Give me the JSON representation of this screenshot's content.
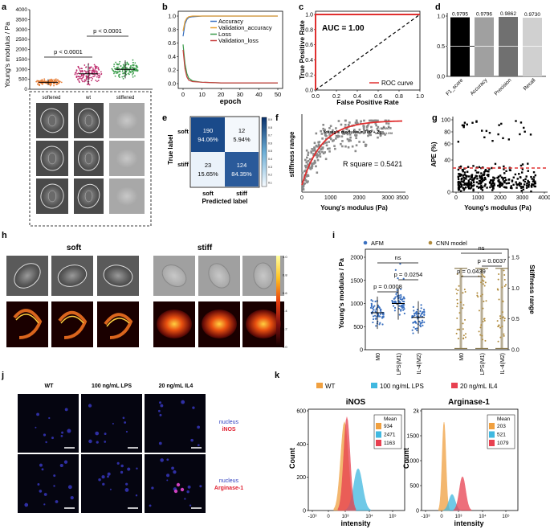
{
  "panels": {
    "a": {
      "letter": "a",
      "ylabel": "Young's modulus / Pa",
      "yticks": [
        "0",
        "500",
        "1000",
        "1500",
        "2000",
        "2500",
        "3000",
        "3500",
        "4000"
      ],
      "p1": "p < 0.0001",
      "p2": "p < 0.0001",
      "groups": [
        "softened",
        "wt",
        "stiffened"
      ]
    },
    "b": {
      "letter": "b",
      "xlabel": "epoch"
    },
    "c": {
      "letter": "c",
      "xlabel": "False Positive Rate",
      "ylabel": "True Positive Rate",
      "auc": "AUC = 1.00",
      "legend": "ROC curve"
    },
    "d": {
      "letter": "d"
    },
    "e": {
      "letter": "e",
      "xlabel": "Predicted label",
      "ylabel": "True label",
      "classes": [
        "soft",
        "stiff"
      ],
      "cells": [
        [
          "190",
          "94.06%"
        ],
        [
          "12",
          "5.94%"
        ],
        [
          "23",
          "15.65%"
        ],
        [
          "124",
          "84.35%"
        ]
      ],
      "scale_ticks": [
        "0.9",
        "0.8",
        "0.7",
        "0.6",
        "0.5",
        "0.4",
        "0.3",
        "0.2",
        "0.1"
      ]
    },
    "f": {
      "letter": "f",
      "xlabel": "Young's modulus (Pa)",
      "ylabel": "stiffness range",
      "eq": "Young's modulus = 789 + 2e",
      "exp_top": "−1.2686",
      "exp_bottom": "range − 1.098",
      "r2": "R square = 0.5421"
    },
    "g": {
      "letter": "g",
      "xlabel": "Young's modulus (Pa)",
      "ylabel": "APE (%)"
    },
    "h": {
      "letter": "h",
      "soft": "soft",
      "stiff": "stiff",
      "cbar": [
        "1.0",
        "0.8",
        "0.6",
        "0.4",
        "0.2",
        "0.0"
      ]
    },
    "i": {
      "letter": "i",
      "ylabel": "Young's modulus / Pa",
      "ylabel2": "Stiffness range",
      "legend_afm": "AFM",
      "legend_cnn": "CNN model",
      "yticks": [
        "0",
        "500",
        "1000",
        "1500",
        "2000"
      ],
      "y2ticks": [
        "0.0",
        "0.5",
        "1.0",
        "1.5"
      ],
      "groups": [
        "M0",
        "LPS(M1)",
        "IL-4(M2)",
        "M0",
        "LPS(M1)",
        "IL-4(M2)"
      ],
      "pvals": [
        "ns",
        "p = 0.0008",
        "p = 0.0254",
        "ns",
        "p = 0.0439",
        "p = 0.0037"
      ]
    },
    "j": {
      "letter": "j",
      "cols": [
        "WT",
        "100 ng/mL LPS",
        "20 ng/mL IL4"
      ],
      "row1_label": "nucleus",
      "row1_marker": "iNOS",
      "row2_label": "nucleus",
      "row2_marker": "Arginase-1"
    },
    "k": {
      "letter": "k",
      "legend": [
        "WT",
        "100 ng/mL LPS",
        "20 ng/mL IL4"
      ],
      "ylabel": "Count",
      "xlabel": "intensity",
      "inos_title": "iNOS",
      "arg_title": "Arginase-1",
      "mean_label": "Mean",
      "inos_means": [
        "934",
        "2471",
        "1163"
      ],
      "arg_means": [
        "203",
        "521",
        "1079"
      ],
      "inos_yticks": [
        "0",
        "200",
        "400",
        "600"
      ],
      "arg_yticks": [
        "0",
        "500",
        "1000",
        "1500",
        "2k"
      ],
      "xticks": [
        "-10³",
        "0",
        "10³",
        "10⁴",
        "10⁵"
      ]
    }
  },
  "colors": {
    "orange": "#f0a040",
    "cyan": "#40b8e0",
    "red": "#e84050",
    "gold": "#b08a3a",
    "blue": "#3a70c0"
  },
  "chart_data": [
    {
      "panel": "b",
      "type": "line",
      "title": "",
      "xlabel": "epoch",
      "ylabel": "",
      "xlim": [
        0,
        50
      ],
      "ylim": [
        0,
        1
      ],
      "x_ticks": [
        0,
        10,
        20,
        30,
        40,
        50
      ],
      "y_ticks": [
        0.0,
        0.2,
        0.4,
        0.6,
        0.8,
        1.0
      ],
      "series": [
        {
          "name": "Accuracy",
          "color": "#3a70c0",
          "x": [
            0,
            1,
            2,
            3,
            5,
            10,
            20,
            30,
            40,
            50
          ],
          "values": [
            0.7,
            0.88,
            0.95,
            0.98,
            0.99,
            1.0,
            1.0,
            1.0,
            1.0,
            1.0
          ]
        },
        {
          "name": "Validation_accuracy",
          "color": "#e8a030",
          "x": [
            0,
            1,
            2,
            3,
            5,
            10,
            20,
            30,
            40,
            50
          ],
          "values": [
            0.78,
            0.92,
            0.97,
            0.99,
            1.0,
            1.0,
            1.0,
            1.0,
            1.0,
            1.0
          ]
        },
        {
          "name": "Loss",
          "color": "#3a9a4a",
          "x": [
            0,
            1,
            2,
            3,
            5,
            10,
            20,
            30,
            40,
            50
          ],
          "values": [
            0.58,
            0.3,
            0.15,
            0.08,
            0.04,
            0.02,
            0.01,
            0.01,
            0.01,
            0.01
          ]
        },
        {
          "name": "Validation_loss",
          "color": "#c84040",
          "x": [
            0,
            1,
            2,
            3,
            5,
            10,
            20,
            30,
            40,
            50
          ],
          "values": [
            0.5,
            0.22,
            0.1,
            0.05,
            0.03,
            0.02,
            0.01,
            0.01,
            0.01,
            0.01
          ]
        }
      ]
    },
    {
      "panel": "c",
      "type": "line",
      "xlabel": "False Positive Rate",
      "ylabel": "True Positive Rate",
      "xlim": [
        0,
        1
      ],
      "ylim": [
        0,
        1
      ],
      "x_ticks": [
        0.0,
        0.2,
        0.4,
        0.6,
        0.8,
        1.0
      ],
      "y_ticks": [
        0.0,
        0.2,
        0.4,
        0.6,
        0.8,
        1.0
      ],
      "series": [
        {
          "name": "ROC curve",
          "color": "#e03030",
          "x": [
            0,
            0,
            1
          ],
          "values": [
            0,
            1,
            1
          ]
        }
      ],
      "annotation": "AUC = 1.00"
    },
    {
      "panel": "d",
      "type": "bar",
      "categories": [
        "F1_score",
        "Accuracy",
        "Precision",
        "Recall"
      ],
      "values": [
        0.9795,
        0.9796,
        0.9862,
        0.973
      ],
      "data_labels": [
        "0.9795",
        "0.9796",
        "0.9862",
        "0.9730"
      ],
      "colors": [
        "#000000",
        "#a0a0a0",
        "#707070",
        "#d0d0d0"
      ],
      "ylim": [
        0,
        1
      ],
      "y_ticks": [
        0.0,
        0.5,
        1.0
      ],
      "reference_line": 0.5
    },
    {
      "panel": "g",
      "type": "scatter",
      "xlabel": "Young's modulus (Pa)",
      "ylabel": "APE (%)",
      "x_ticks": [
        0,
        1000,
        2000,
        3000,
        4000
      ],
      "y_ticks": [
        0,
        40,
        60,
        80,
        100
      ],
      "y_tick_labels": [
        "0",
        "40",
        "60",
        "80",
        "100"
      ],
      "reference_line": 30
    }
  ]
}
